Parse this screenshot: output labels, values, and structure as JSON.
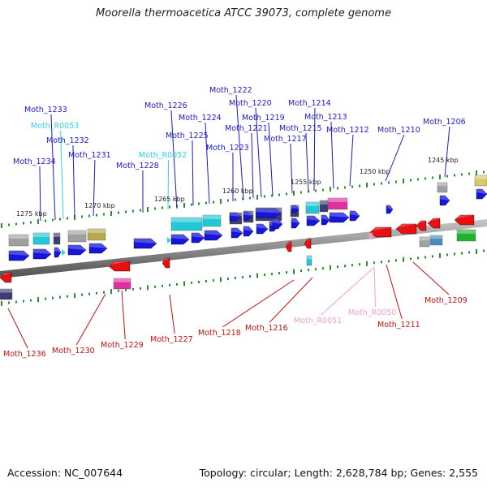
{
  "title": "Moorella thermoacetica ATCC 39073, complete genome",
  "footer": {
    "accession": "Accession: NC_007644",
    "genome_info": "Topology: circular; Length: 2,628,784 bp; Genes: 2,555"
  },
  "scale_labels": [
    "1275 kbp",
    "1270 kbp",
    "1265 kbp",
    "1260 kbp",
    "1255 kbp",
    "1250 kbp",
    "1245 kbp"
  ],
  "colors": {
    "forward_gene": "#1515dd",
    "reverse_gene": "#e81010",
    "forward_label": "#1a1ac8",
    "reverse_label": "#c41010",
    "trna_forward": "#33d0e8",
    "trna_reverse": "#f0a0c8",
    "axis": "#8a8a8a",
    "tick": "#2e8b2e",
    "cog_cyan": "#22c8d8",
    "cog_gray": "#a0a0a0",
    "cog_dark": "#3c3c70",
    "cog_olive": "#b8a850",
    "cog_magenta": "#e030a0",
    "cog_steel": "#4a8ac0",
    "cog_green": "#22b030"
  },
  "forward_genes": [
    {
      "label": "Moth_1234",
      "type": "gene"
    },
    {
      "label": "Moth_1233",
      "type": "gene"
    },
    {
      "label": "Moth_R0053",
      "type": "tRNA"
    },
    {
      "label": "Moth_1232",
      "type": "gene"
    },
    {
      "label": "Moth_1231",
      "type": "gene"
    },
    {
      "label": "Moth_1228",
      "type": "gene"
    },
    {
      "label": "Moth_R0052",
      "type": "tRNA"
    },
    {
      "label": "Moth_1226",
      "type": "gene"
    },
    {
      "label": "Moth_1225",
      "type": "gene"
    },
    {
      "label": "Moth_1224",
      "type": "gene"
    },
    {
      "label": "Moth_1223",
      "type": "gene"
    },
    {
      "label": "Moth_1222",
      "type": "gene"
    },
    {
      "label": "Moth_1221",
      "type": "gene"
    },
    {
      "label": "Moth_1220",
      "type": "gene"
    },
    {
      "label": "Moth_1219",
      "type": "gene"
    },
    {
      "label": "Moth_1217",
      "type": "gene"
    },
    {
      "label": "Moth_1215",
      "type": "gene"
    },
    {
      "label": "Moth_1214",
      "type": "gene"
    },
    {
      "label": "Moth_1213",
      "type": "gene"
    },
    {
      "label": "Moth_1212",
      "type": "gene"
    },
    {
      "label": "Moth_1210",
      "type": "gene"
    },
    {
      "label": "Moth_1206",
      "type": "gene"
    }
  ],
  "reverse_genes": [
    {
      "label": "Moth_1236",
      "type": "gene"
    },
    {
      "label": "Moth_1230",
      "type": "gene"
    },
    {
      "label": "Moth_1229",
      "type": "gene"
    },
    {
      "label": "Moth_1227",
      "type": "gene"
    },
    {
      "label": "Moth_1218",
      "type": "gene"
    },
    {
      "label": "Moth_1216",
      "type": "gene"
    },
    {
      "label": "Moth_R0051",
      "type": "tRNA"
    },
    {
      "label": "Moth_R0050",
      "type": "tRNA"
    },
    {
      "label": "Moth_1211",
      "type": "gene"
    },
    {
      "label": "Moth_1209",
      "type": "gene"
    }
  ]
}
